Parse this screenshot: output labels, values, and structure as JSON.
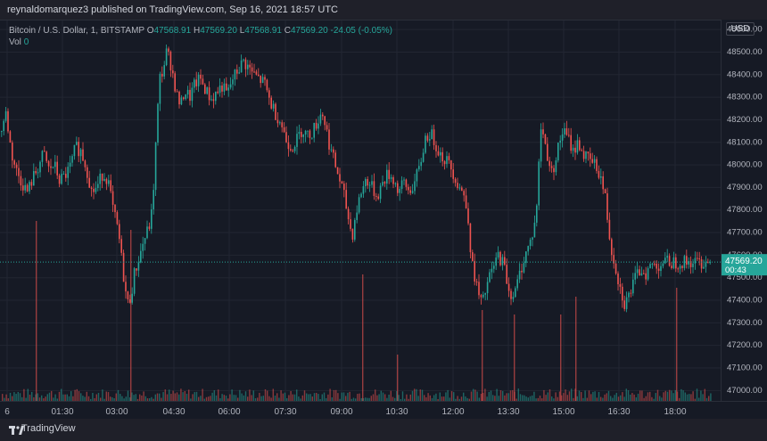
{
  "header": {
    "published": "reynaldomarquez3 published on TradingView.com, Sep 16, 2021 18:57 UTC"
  },
  "legend": {
    "symbol": "Bitcoin / U.S. Dollar, 1, BITSTAMP",
    "open_label": "O",
    "open": "47568.91",
    "high_label": "H",
    "high": "47569.20",
    "low_label": "L",
    "low": "47568.91",
    "close_label": "C",
    "close": "47569.20",
    "change": "-24.05 (-0.05%)",
    "vol_label": "Vol",
    "vol": "0"
  },
  "currency_button": "USD",
  "footer": {
    "brand": "TradingView"
  },
  "colors": {
    "up": "#26a69a",
    "down": "#ef5350",
    "accent": "#26a69a",
    "background": "#161a25"
  },
  "chart_data": {
    "type": "candlestick",
    "price_axis": {
      "min": 46950,
      "max": 48640,
      "ticks": [
        47000,
        47100,
        47200,
        47300,
        47400,
        47500,
        47600,
        47700,
        47800,
        47900,
        48000,
        48100,
        48200,
        48300,
        48400,
        48500,
        48600
      ],
      "tick_labels": [
        "47000.00",
        "47100.00",
        "47200.00",
        "47300.00",
        "47400.00",
        "47500.00",
        "47600.00",
        "47700.00",
        "47800.00",
        "47900.00",
        "48000.00",
        "48100.00",
        "48200.00",
        "48300.00",
        "48400.00",
        "48500.00",
        "48600.00"
      ]
    },
    "time_axis": {
      "labels": [
        "6",
        "01:30",
        "03:00",
        "04:30",
        "06:00",
        "07:30",
        "09:00",
        "10:30",
        "12:00",
        "13:30",
        "15:00",
        "16:30",
        "18:00"
      ]
    },
    "last_price": {
      "value": 47569.2,
      "label": "47569.20",
      "countdown": "00:43"
    },
    "close_path": [
      [
        0,
        48150
      ],
      [
        6,
        48230
      ],
      [
        12,
        48050
      ],
      [
        18,
        47970
      ],
      [
        24,
        47920
      ],
      [
        30,
        47880
      ],
      [
        36,
        47940
      ],
      [
        42,
        47990
      ],
      [
        48,
        48050
      ],
      [
        54,
        47980
      ],
      [
        60,
        48000
      ],
      [
        66,
        47930
      ],
      [
        72,
        47950
      ],
      [
        78,
        47990
      ],
      [
        84,
        48080
      ],
      [
        90,
        48060
      ],
      [
        96,
        47990
      ],
      [
        102,
        47880
      ],
      [
        108,
        47900
      ],
      [
        114,
        47960
      ],
      [
        120,
        47940
      ],
      [
        126,
        47800
      ],
      [
        132,
        47700
      ],
      [
        138,
        47500
      ],
      [
        142,
        47380
      ],
      [
        146,
        47420
      ],
      [
        150,
        47520
      ],
      [
        156,
        47600
      ],
      [
        160,
        47660
      ],
      [
        166,
        47720
      ],
      [
        170,
        47800
      ],
      [
        174,
        48100
      ],
      [
        178,
        48380
      ],
      [
        182,
        48420
      ],
      [
        186,
        48500
      ],
      [
        190,
        48460
      ],
      [
        194,
        48380
      ],
      [
        198,
        48300
      ],
      [
        202,
        48260
      ],
      [
        206,
        48330
      ],
      [
        212,
        48300
      ],
      [
        218,
        48360
      ],
      [
        224,
        48380
      ],
      [
        230,
        48330
      ],
      [
        236,
        48290
      ],
      [
        242,
        48320
      ],
      [
        248,
        48350
      ],
      [
        254,
        48310
      ],
      [
        260,
        48380
      ],
      [
        266,
        48420
      ],
      [
        272,
        48460
      ],
      [
        278,
        48430
      ],
      [
        284,
        48400
      ],
      [
        290,
        48380
      ],
      [
        296,
        48360
      ],
      [
        302,
        48280
      ],
      [
        308,
        48230
      ],
      [
        314,
        48190
      ],
      [
        320,
        48110
      ],
      [
        326,
        48080
      ],
      [
        332,
        48110
      ],
      [
        338,
        48160
      ],
      [
        344,
        48130
      ],
      [
        350,
        48150
      ],
      [
        356,
        48200
      ],
      [
        360,
        48240
      ],
      [
        364,
        48180
      ],
      [
        368,
        48100
      ],
      [
        372,
        48040
      ],
      [
        378,
        47960
      ],
      [
        384,
        47880
      ],
      [
        390,
        47760
      ],
      [
        394,
        47680
      ],
      [
        398,
        47780
      ],
      [
        404,
        47880
      ],
      [
        410,
        47940
      ],
      [
        416,
        47900
      ],
      [
        422,
        47860
      ],
      [
        428,
        47920
      ],
      [
        434,
        47960
      ],
      [
        440,
        47940
      ],
      [
        446,
        47880
      ],
      [
        452,
        47920
      ],
      [
        458,
        47880
      ],
      [
        464,
        47920
      ],
      [
        470,
        47990
      ],
      [
        476,
        48120
      ],
      [
        482,
        48140
      ],
      [
        488,
        48090
      ],
      [
        494,
        48040
      ],
      [
        500,
        48020
      ],
      [
        506,
        47980
      ],
      [
        512,
        47920
      ],
      [
        518,
        47880
      ],
      [
        524,
        47780
      ],
      [
        528,
        47560
      ],
      [
        532,
        47500
      ],
      [
        536,
        47420
      ],
      [
        540,
        47380
      ],
      [
        546,
        47480
      ],
      [
        552,
        47540
      ],
      [
        558,
        47600
      ],
      [
        564,
        47560
      ],
      [
        570,
        47440
      ],
      [
        576,
        47420
      ],
      [
        582,
        47520
      ],
      [
        588,
        47600
      ],
      [
        594,
        47660
      ],
      [
        600,
        47760
      ],
      [
        606,
        48180
      ],
      [
        612,
        48060
      ],
      [
        618,
        47960
      ],
      [
        624,
        48060
      ],
      [
        630,
        48150
      ],
      [
        636,
        48120
      ],
      [
        642,
        48060
      ],
      [
        648,
        48100
      ],
      [
        654,
        48040
      ],
      [
        660,
        48020
      ],
      [
        666,
        48000
      ],
      [
        672,
        47960
      ],
      [
        678,
        47850
      ],
      [
        682,
        47700
      ],
      [
        686,
        47600
      ],
      [
        690,
        47540
      ],
      [
        694,
        47460
      ],
      [
        700,
        47380
      ],
      [
        706,
        47440
      ],
      [
        712,
        47500
      ],
      [
        718,
        47540
      ],
      [
        724,
        47520
      ],
      [
        730,
        47560
      ],
      [
        736,
        47550
      ],
      [
        742,
        47569
      ]
    ],
    "volume_spikes": [
      [
        40,
        225
      ],
      [
        146,
        215
      ],
      [
        406,
        165
      ],
      [
        445,
        75
      ],
      [
        540,
        125
      ],
      [
        576,
        120
      ],
      [
        628,
        120
      ],
      [
        645,
        140
      ],
      [
        758,
        150
      ]
    ]
  }
}
